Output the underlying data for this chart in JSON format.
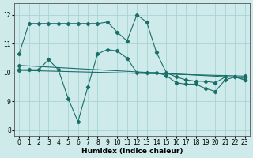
{
  "xlabel": "Humidex (Indice chaleur)",
  "bg_color": "#ceeaea",
  "grid_color": "#a8d4d4",
  "line_color": "#1a6e6a",
  "ylim": [
    7.8,
    12.4
  ],
  "xlim": [
    -0.5,
    23.5
  ],
  "yticks": [
    8,
    9,
    10,
    11,
    12
  ],
  "xticks": [
    0,
    1,
    2,
    3,
    4,
    5,
    6,
    7,
    8,
    9,
    10,
    11,
    12,
    13,
    14,
    15,
    16,
    17,
    18,
    19,
    20,
    21,
    22,
    23
  ],
  "line1_x": [
    0,
    1,
    2,
    3,
    4,
    5,
    6,
    7,
    8,
    9,
    10,
    11,
    12,
    13,
    14,
    15,
    16,
    17,
    18,
    19,
    20,
    21,
    22,
    23
  ],
  "line1_y": [
    10.65,
    11.7,
    11.7,
    11.7,
    11.7,
    11.7,
    11.7,
    11.7,
    11.7,
    11.75,
    11.4,
    11.1,
    12.0,
    11.75,
    10.7,
    10.0,
    9.85,
    9.75,
    9.7,
    9.7,
    9.65,
    9.85,
    9.85,
    9.75
  ],
  "line2_x": [
    0,
    1,
    2,
    3,
    4,
    5,
    6,
    7,
    8,
    9,
    10,
    11,
    12,
    13,
    14,
    15,
    16,
    17,
    18,
    19,
    20,
    21,
    22,
    23
  ],
  "line2_y": [
    10.1,
    10.1,
    10.1,
    10.45,
    10.1,
    9.1,
    8.3,
    9.5,
    10.65,
    10.8,
    10.75,
    10.5,
    10.0,
    10.0,
    10.0,
    9.9,
    9.65,
    9.6,
    9.6,
    9.45,
    9.35,
    9.75,
    9.85,
    9.75
  ],
  "line3_x": [
    0,
    23
  ],
  "line3_y": [
    10.25,
    9.82
  ],
  "line4_x": [
    0,
    23
  ],
  "line4_y": [
    10.08,
    9.88
  ]
}
